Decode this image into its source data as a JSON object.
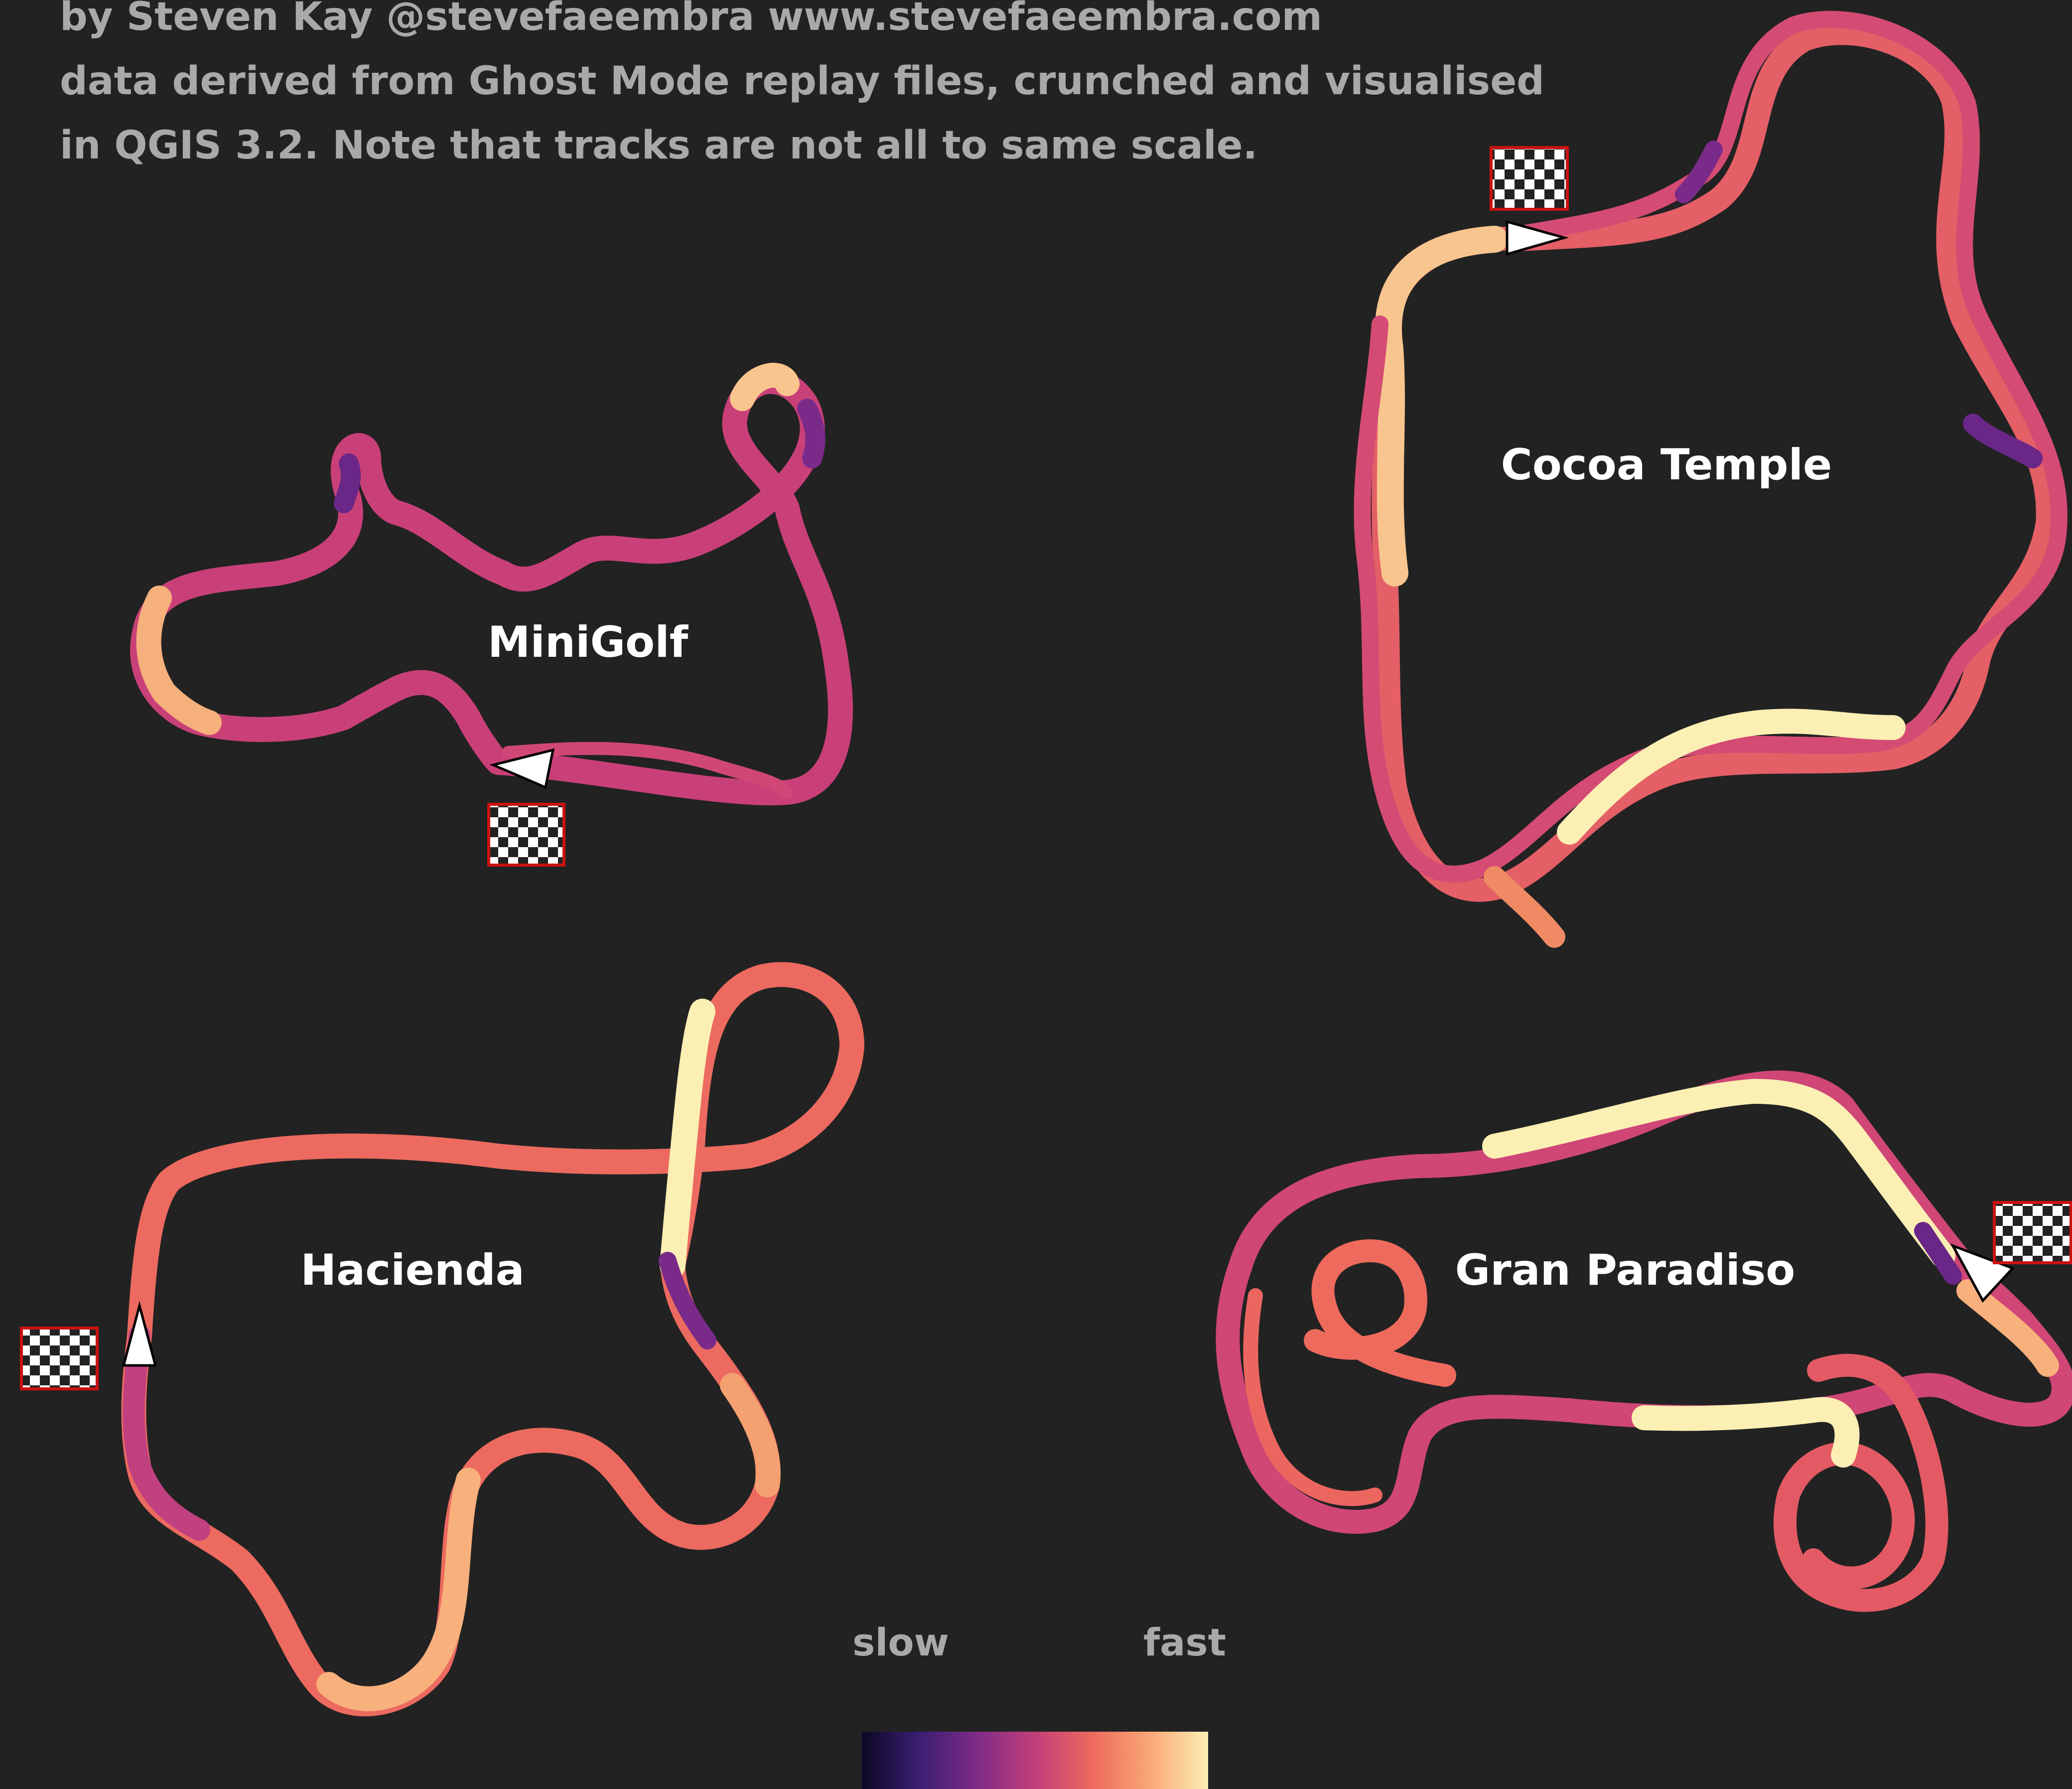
{
  "credits": [
    "by Steven Kay @stevefaeembra www.stevefaeembra.com",
    "data derived from Ghost Mode replay files, crunched and visualised",
    "in QGIS 3.2. Note that tracks are not all to same scale."
  ],
  "tracks": [
    {
      "id": "minigolf",
      "name": "MiniGolf"
    },
    {
      "id": "cocoa-temple",
      "name": "Cocoa Temple"
    },
    {
      "id": "hacienda",
      "name": "Hacienda"
    },
    {
      "id": "gran-paradiso",
      "name": "Gran Paradiso"
    }
  ],
  "legend": {
    "slow_label": "slow",
    "fast_label": "fast",
    "colors": [
      "#0b0724",
      "#3b1f73",
      "#7e2b86",
      "#c23f7a",
      "#ee6a5d",
      "#f9a877",
      "#fcefb4"
    ]
  },
  "colors": {
    "background": "#222222",
    "text": "#a9a9a9",
    "label": "#ffffff",
    "flag_border": "#cc1111"
  }
}
